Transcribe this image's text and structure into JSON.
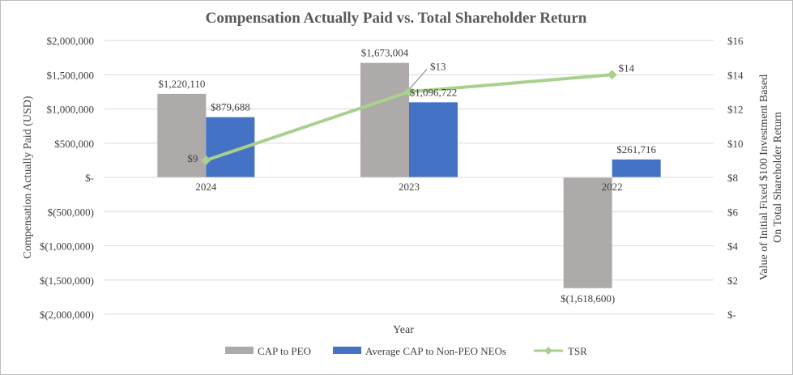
{
  "chart_data": {
    "type": "bar",
    "title": "Compensation Actually Paid vs. Total Shareholder Return",
    "xlabel": "Year",
    "ylabel": "Compensation Actually Paid (USD)",
    "y2label_line1": "Value of Initial Fixed $100 Investment Based",
    "y2label_line2": "On Total Shareholder Return",
    "categories": [
      "2024",
      "2023",
      "2022"
    ],
    "ylim": [
      -2000000,
      2000000
    ],
    "y2lim": [
      0,
      16
    ],
    "y_ticks": [
      2000000,
      1500000,
      1000000,
      500000,
      0,
      -500000,
      -1000000,
      -1500000,
      -2000000
    ],
    "y_tick_labels": [
      "$2,000,000",
      "$1,500,000",
      "$1,000,000",
      "$500,000",
      "$-",
      "$(500,000)",
      "$(1,000,000)",
      "$(1,500,000)",
      "$(2,000,000)"
    ],
    "y2_ticks": [
      16,
      14,
      12,
      10,
      8,
      6,
      4,
      2,
      0
    ],
    "y2_tick_labels": [
      "$16",
      "$14",
      "$12",
      "$10",
      "$8",
      "$6",
      "$4",
      "$2",
      "$-"
    ],
    "series": [
      {
        "name": "CAP to PEO",
        "kind": "bar",
        "axis": "left",
        "color": "#aeaaaa",
        "values": [
          1220110,
          1673004,
          -1618600
        ],
        "labels": [
          "$1,220,110",
          "$1,673,004",
          "$(1,618,600)"
        ]
      },
      {
        "name": "Average CAP to Non-PEO NEOs",
        "kind": "bar",
        "axis": "left",
        "color": "#4472c4",
        "values": [
          879688,
          1096722,
          261716
        ],
        "labels": [
          "$879,688",
          "$1,096,722",
          "$261,716"
        ]
      },
      {
        "name": "TSR",
        "kind": "line",
        "axis": "right",
        "color": "#a9d18e",
        "values": [
          9,
          13,
          14
        ],
        "labels": [
          "$9",
          "$13",
          "$14"
        ]
      }
    ],
    "legend_position": "bottom"
  }
}
